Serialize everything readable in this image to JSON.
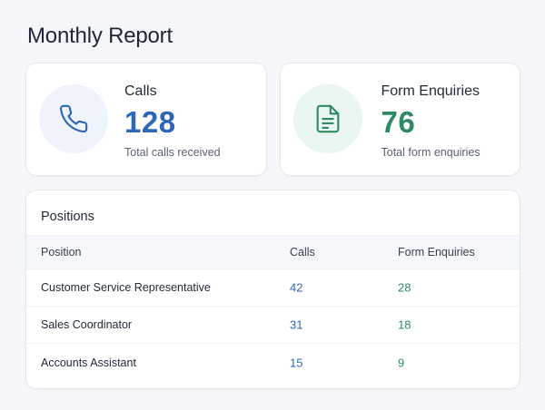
{
  "page": {
    "title": "Monthly Report"
  },
  "stats": {
    "calls": {
      "label": "Calls",
      "value": "128",
      "subtitle": "Total calls received",
      "icon": "phone-icon",
      "accent": "#2f67b8"
    },
    "forms": {
      "label": "Form Enquiries",
      "value": "76",
      "subtitle": "Total form enquiries",
      "icon": "document-icon",
      "accent": "#2e8a62"
    }
  },
  "positions": {
    "title": "Positions",
    "columns": [
      "Position",
      "Calls",
      "Form Enquiries"
    ],
    "rows": [
      {
        "position": "Customer Service Representative",
        "calls": "42",
        "forms": "28"
      },
      {
        "position": "Sales Coordinator",
        "calls": "31",
        "forms": "18"
      },
      {
        "position": "Accounts Assistant",
        "calls": "15",
        "forms": "9"
      }
    ]
  }
}
